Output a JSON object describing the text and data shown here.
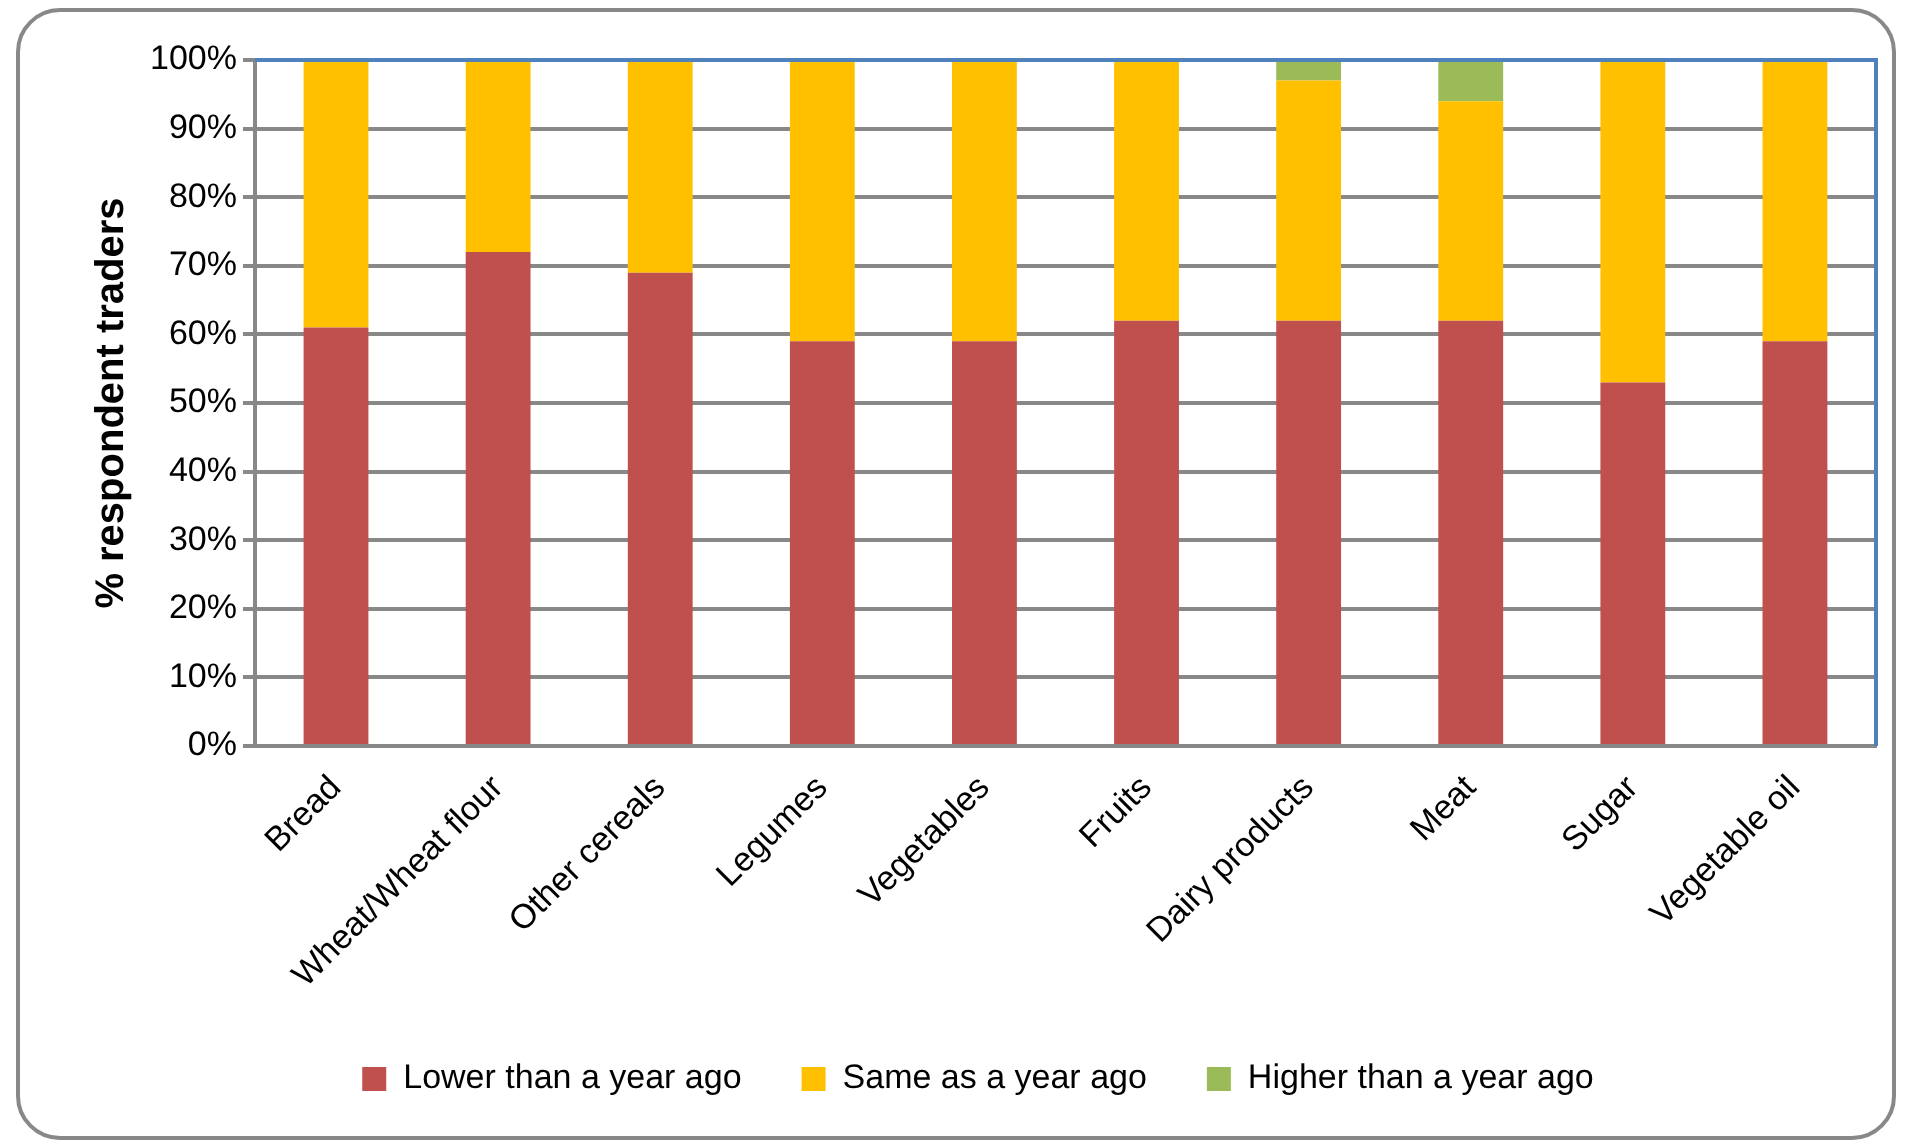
{
  "chart_data": {
    "type": "bar",
    "stacked": true,
    "ylabel": "% respondent traders",
    "categories": [
      "Bread",
      "Wheat/Wheat flour",
      "Other cereals",
      "Legumes",
      "Vegetables",
      "Fruits",
      "Dairy products",
      "Meat",
      "Sugar",
      "Vegetable oil"
    ],
    "series": [
      {
        "name": "Lower than a year ago",
        "color": "#c0504d",
        "values": [
          61,
          72,
          69,
          59,
          59,
          62,
          62,
          62,
          53,
          59
        ]
      },
      {
        "name": "Same as a year ago",
        "color": "#ffc000",
        "values": [
          39,
          28,
          31,
          41,
          41,
          38,
          35,
          32,
          47,
          41
        ]
      },
      {
        "name": "Higher than a year ago",
        "color": "#9bbb59",
        "values": [
          0,
          0,
          0,
          0,
          0,
          0,
          3,
          6,
          0,
          0
        ]
      }
    ],
    "ylim": [
      0,
      100
    ],
    "yticks": [
      {
        "value": 0,
        "label": "0%"
      },
      {
        "value": 10,
        "label": "10%"
      },
      {
        "value": 20,
        "label": "20%"
      },
      {
        "value": 30,
        "label": "30%"
      },
      {
        "value": 40,
        "label": "40%"
      },
      {
        "value": 50,
        "label": "50%"
      },
      {
        "value": 60,
        "label": "60%"
      },
      {
        "value": 70,
        "label": "70%"
      },
      {
        "value": 80,
        "label": "80%"
      },
      {
        "value": 90,
        "label": "90%"
      },
      {
        "value": 100,
        "label": "100%"
      }
    ],
    "grid": "y",
    "legend": "bottom"
  }
}
